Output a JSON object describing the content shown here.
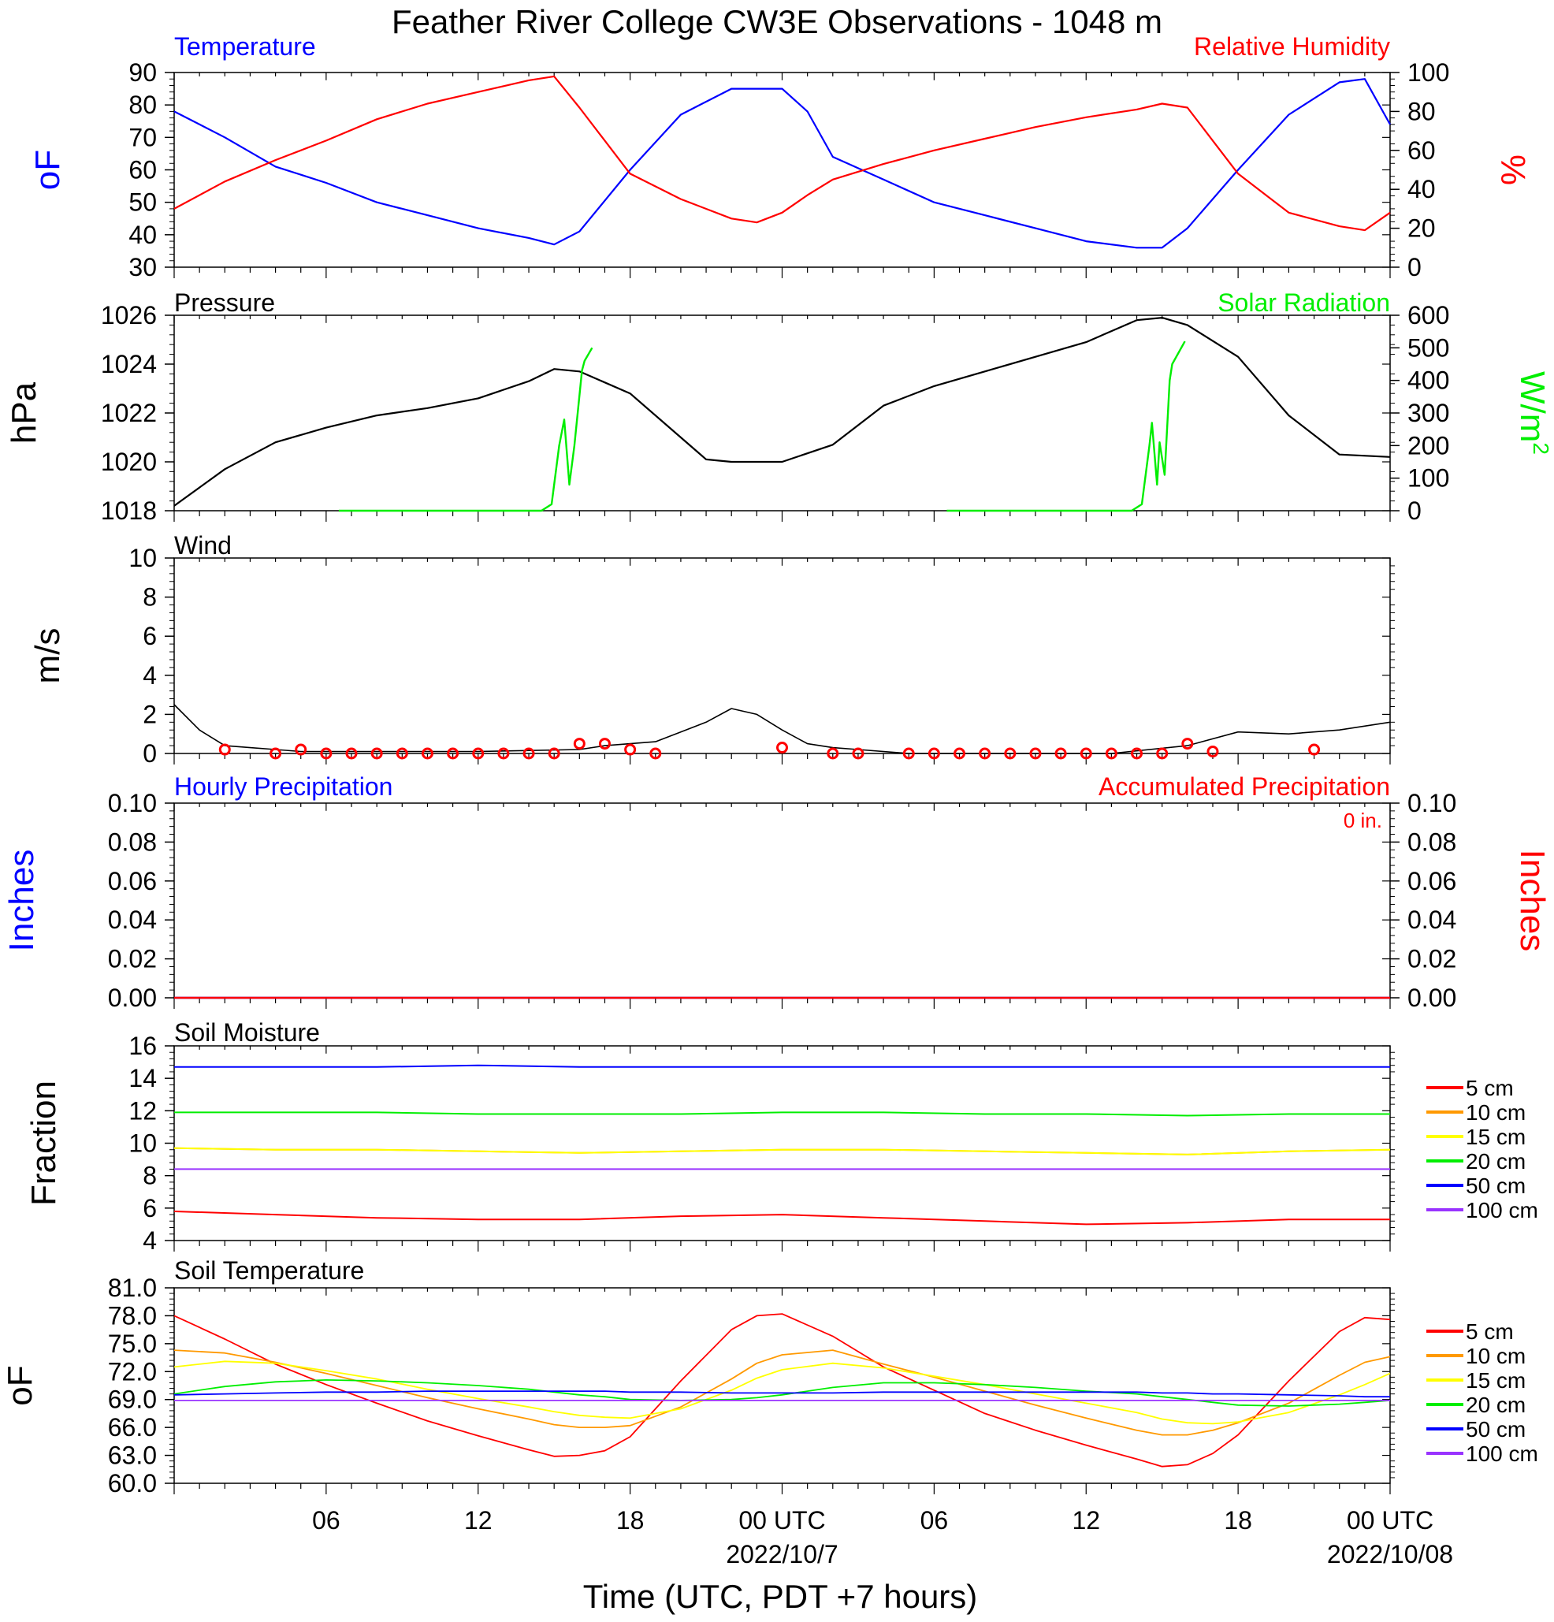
{
  "figure": {
    "title": "Feather River College CW3E Observations - 1048 m",
    "x_axis_label": "Time (UTC, PDT +7 hours)",
    "x_tick_labels": [
      "06",
      "12",
      "18",
      "00 UTC",
      "06",
      "12",
      "18",
      "00 UTC"
    ],
    "x_date_labels": [
      "2022/10/7",
      "2022/10/08"
    ],
    "colors": {
      "blue": "#0000ff",
      "red": "#ff0000",
      "green": "#00ee00",
      "black": "#000000",
      "orange": "#ff9900",
      "yellow": "#ffff00",
      "purple": "#9933ff"
    }
  },
  "chart_data": [
    {
      "type": "line",
      "panel": "temperature_humidity",
      "title_left": "Temperature",
      "title_right": "Relative Humidity",
      "ylabel_left": "oF",
      "ylabel_right": "%",
      "ylim_left": [
        30,
        90
      ],
      "ylim_right": [
        0,
        100
      ],
      "y_ticks_left": [
        "30",
        "40",
        "50",
        "60",
        "70",
        "80",
        "90"
      ],
      "y_ticks_right": [
        "0",
        "20",
        "40",
        "60",
        "80",
        "100"
      ],
      "x_hours": [
        0,
        2,
        4,
        6,
        8,
        10,
        12,
        14,
        15,
        16,
        18,
        20,
        22,
        23,
        24,
        25,
        26,
        28,
        30,
        32,
        34,
        36,
        38,
        39,
        40,
        42,
        44,
        46,
        47,
        48
      ],
      "series": [
        {
          "name": "Temperature",
          "axis": "left",
          "color": "#0000ff",
          "values": [
            78,
            70,
            61,
            56,
            50,
            46,
            42,
            39,
            37,
            41,
            60,
            77,
            85,
            85,
            85,
            78,
            64,
            57,
            50,
            46,
            42,
            38,
            36,
            36,
            42,
            60,
            77,
            87,
            88,
            74
          ]
        },
        {
          "name": "Relative Humidity",
          "axis": "right",
          "color": "#ff0000",
          "values": [
            30,
            44,
            55,
            65,
            76,
            84,
            90,
            96,
            98,
            82,
            48,
            35,
            25,
            23,
            28,
            37,
            45,
            53,
            60,
            66,
            72,
            77,
            81,
            84,
            82,
            48,
            28,
            21,
            19,
            28
          ]
        }
      ]
    },
    {
      "type": "line",
      "panel": "pressure_solar",
      "title_left": "Pressure",
      "title_right": "Solar Radiation",
      "ylabel_left": "hPa",
      "ylabel_right": "W/m",
      "ylabel_right_superscript": "2",
      "ylim_left": [
        1018,
        1026
      ],
      "ylim_right": [
        0,
        600
      ],
      "y_ticks_left": [
        "1018",
        "1020",
        "1022",
        "1024",
        "1026"
      ],
      "y_ticks_right": [
        "0",
        "100",
        "200",
        "300",
        "400",
        "500",
        "600"
      ],
      "series": [
        {
          "name": "Pressure",
          "axis": "left",
          "color": "#000000",
          "x_hours": [
            0,
            2,
            4,
            6,
            8,
            10,
            12,
            14,
            15,
            16,
            18,
            20,
            21,
            22,
            24,
            26,
            28,
            30,
            32,
            34,
            36,
            38,
            39,
            40,
            42,
            44,
            46,
            48
          ],
          "values": [
            1018.2,
            1019.7,
            1020.8,
            1021.4,
            1021.9,
            1022.2,
            1022.6,
            1023.3,
            1023.8,
            1023.7,
            1022.8,
            1021.0,
            1020.1,
            1020.0,
            1020.0,
            1020.7,
            1022.3,
            1023.1,
            1023.7,
            1024.3,
            1024.9,
            1025.8,
            1025.9,
            1025.6,
            1024.3,
            1021.9,
            1020.3,
            1020.2
          ]
        },
        {
          "name": "Solar Radiation",
          "axis": "right",
          "color": "#00ee00",
          "x_hours": [
            6.5,
            14,
            14.5,
            14.9,
            15.2,
            15.4,
            15.6,
            15.8,
            16.1,
            16.2,
            16.5,
            17.1,
            30.5,
            37.8,
            38.2,
            38.5,
            38.6,
            38.8,
            38.9,
            39.1,
            39.3,
            39.4,
            39.9,
            40.2
          ],
          "values": [
            0,
            0,
            0,
            20,
            200,
            280,
            80,
            200,
            430,
            460,
            500,
            0,
            0,
            0,
            20,
            200,
            270,
            80,
            210,
            110,
            400,
            450,
            520,
            0
          ],
          "gaps_after_index": [
            11
          ]
        }
      ]
    },
    {
      "type": "line",
      "panel": "wind",
      "title_left": "Wind",
      "ylabel_left": "m/s",
      "ylim_left": [
        0,
        10
      ],
      "y_ticks_left": [
        "0",
        "2",
        "4",
        "6",
        "8",
        "10"
      ],
      "series": [
        {
          "name": "Wind speed",
          "color": "#000000",
          "x_hours": [
            0,
            1,
            2,
            3,
            4,
            5,
            8,
            12,
            16,
            17,
            19,
            20,
            21,
            22,
            23,
            24,
            25,
            26,
            27,
            29,
            37,
            40,
            42,
            44,
            46,
            48
          ],
          "values": [
            2.5,
            1.2,
            0.4,
            0.3,
            0.2,
            0.1,
            0.1,
            0.1,
            0.2,
            0.4,
            0.6,
            1.1,
            1.6,
            2.3,
            2.0,
            1.2,
            0.5,
            0.3,
            0.2,
            0.0,
            0.0,
            0.4,
            1.1,
            1.0,
            1.2,
            1.6
          ]
        }
      ],
      "station_circles_x_hours": [
        2,
        4,
        5,
        6,
        7,
        8,
        9,
        10,
        11,
        12,
        13,
        14,
        15,
        16,
        17,
        18,
        19,
        24,
        26,
        27,
        29,
        30,
        31,
        32,
        33,
        34,
        35,
        36,
        37,
        38,
        39,
        40,
        41,
        45
      ],
      "station_circles_values": [
        0.2,
        0,
        0.2,
        0,
        0,
        0,
        0,
        0,
        0,
        0,
        0,
        0,
        0,
        0.5,
        0.5,
        0.2,
        0,
        0.3,
        0,
        0,
        0,
        0,
        0,
        0,
        0,
        0,
        0,
        0,
        0,
        0,
        0,
        0.5,
        0.1,
        0.2
      ]
    },
    {
      "type": "line",
      "panel": "precipitation",
      "title_left": "Hourly Precipitation",
      "title_right": "Accumulated Precipitation",
      "annotation": "0 in.",
      "ylabel_left": "Inches",
      "ylabel_right": "Inches",
      "ylim_left": [
        0,
        0.1
      ],
      "ylim_right": [
        0,
        0.1
      ],
      "y_ticks_left": [
        "0.00",
        "0.02",
        "0.04",
        "0.06",
        "0.08",
        "0.10"
      ],
      "y_ticks_right": [
        "0.00",
        "0.02",
        "0.04",
        "0.06",
        "0.08",
        "0.10"
      ],
      "series": [
        {
          "name": "Hourly Precipitation",
          "color": "#0000ff",
          "x_hours": [
            0,
            48
          ],
          "values": [
            0,
            0
          ]
        },
        {
          "name": "Accumulated Precipitation",
          "color": "#ff0000",
          "x_hours": [
            0,
            48
          ],
          "values": [
            0,
            0
          ]
        }
      ]
    },
    {
      "type": "line",
      "panel": "soil_moisture",
      "title_left": "Soil Moisture",
      "ylabel_left": "Fraction",
      "ylim_left": [
        4,
        16
      ],
      "y_ticks_left": [
        "4",
        "6",
        "8",
        "10",
        "12",
        "14",
        "16"
      ],
      "x_hours": [
        0,
        4,
        8,
        12,
        16,
        20,
        24,
        28,
        32,
        36,
        40,
        44,
        48
      ],
      "series": [
        {
          "name": "5 cm",
          "color": "#ff0000",
          "values": [
            5.8,
            5.6,
            5.4,
            5.3,
            5.3,
            5.5,
            5.6,
            5.4,
            5.2,
            5.0,
            5.1,
            5.3,
            5.3
          ]
        },
        {
          "name": "10 cm",
          "color": "#ff9900",
          "values": [
            9.7,
            9.6,
            9.6,
            9.5,
            9.4,
            9.5,
            9.6,
            9.6,
            9.5,
            9.4,
            9.3,
            9.5,
            9.6
          ]
        },
        {
          "name": "15 cm",
          "color": "#ffff00",
          "values": [
            9.7,
            9.6,
            9.6,
            9.5,
            9.4,
            9.5,
            9.6,
            9.6,
            9.5,
            9.4,
            9.3,
            9.5,
            9.6
          ]
        },
        {
          "name": "20 cm",
          "color": "#00ee00",
          "values": [
            11.9,
            11.9,
            11.9,
            11.8,
            11.8,
            11.8,
            11.9,
            11.9,
            11.8,
            11.8,
            11.7,
            11.8,
            11.8
          ]
        },
        {
          "name": "50 cm",
          "color": "#0000ff",
          "values": [
            14.7,
            14.7,
            14.7,
            14.8,
            14.7,
            14.7,
            14.7,
            14.7,
            14.7,
            14.7,
            14.7,
            14.7,
            14.7
          ]
        },
        {
          "name": "100 cm",
          "color": "#9933ff",
          "values": [
            8.4,
            8.4,
            8.4,
            8.4,
            8.4,
            8.4,
            8.4,
            8.4,
            8.4,
            8.4,
            8.4,
            8.4,
            8.4
          ]
        }
      ],
      "legend": [
        "5 cm",
        "10 cm",
        "15 cm",
        "20 cm",
        "50 cm",
        "100 cm"
      ]
    },
    {
      "type": "line",
      "panel": "soil_temperature",
      "title_left": "Soil Temperature",
      "ylabel_left": "oF",
      "ylim_left": [
        60,
        81
      ],
      "y_ticks_left": [
        "60.0",
        "63.0",
        "66.0",
        "69.0",
        "72.0",
        "75.0",
        "78.0",
        "81.0"
      ],
      "x_hours": [
        0,
        2,
        4,
        6,
        8,
        10,
        12,
        14,
        15,
        16,
        17,
        18,
        20,
        22,
        23,
        24,
        26,
        28,
        30,
        32,
        34,
        36,
        38,
        39,
        40,
        41,
        42,
        44,
        46,
        47,
        48
      ],
      "series": [
        {
          "name": "5 cm",
          "color": "#ff0000",
          "values": [
            78.0,
            75.5,
            72.8,
            70.6,
            68.6,
            66.7,
            65.1,
            63.6,
            62.9,
            63.0,
            63.5,
            65.0,
            71.0,
            76.5,
            78.0,
            78.2,
            75.8,
            72.5,
            70.0,
            67.5,
            65.7,
            64.1,
            62.6,
            61.8,
            62.0,
            63.2,
            65.2,
            71.0,
            76.3,
            77.8,
            77.6
          ]
        },
        {
          "name": "10 cm",
          "color": "#ff9900",
          "values": [
            74.3,
            74.0,
            73.0,
            71.8,
            70.5,
            69.2,
            68.0,
            66.9,
            66.3,
            66.0,
            66.0,
            66.2,
            68.2,
            71.2,
            72.9,
            73.8,
            74.3,
            72.8,
            71.4,
            69.9,
            68.4,
            67.0,
            65.7,
            65.2,
            65.2,
            65.7,
            66.5,
            68.6,
            71.6,
            73.0,
            73.6
          ]
        },
        {
          "name": "15 cm",
          "color": "#ffff00",
          "values": [
            72.5,
            73.1,
            72.9,
            72.1,
            71.2,
            70.1,
            69.1,
            68.2,
            67.7,
            67.3,
            67.1,
            67.0,
            68.0,
            70.0,
            71.3,
            72.2,
            72.9,
            72.4,
            71.5,
            70.6,
            69.6,
            68.6,
            67.6,
            66.9,
            66.5,
            66.4,
            66.6,
            67.6,
            69.5,
            70.6,
            71.8
          ]
        },
        {
          "name": "20 cm",
          "color": "#00ee00",
          "values": [
            69.6,
            70.4,
            70.9,
            71.1,
            71.0,
            70.8,
            70.5,
            70.1,
            69.8,
            69.5,
            69.3,
            69.0,
            68.9,
            69.0,
            69.2,
            69.5,
            70.3,
            70.8,
            70.8,
            70.6,
            70.3,
            69.9,
            69.6,
            69.3,
            69.0,
            68.7,
            68.4,
            68.3,
            68.5,
            68.7,
            68.9
          ]
        },
        {
          "name": "50 cm",
          "color": "#0000ff",
          "values": [
            69.5,
            69.6,
            69.7,
            69.8,
            69.8,
            69.9,
            69.9,
            69.9,
            69.9,
            69.9,
            69.9,
            69.8,
            69.8,
            69.7,
            69.7,
            69.7,
            69.7,
            69.8,
            69.8,
            69.8,
            69.8,
            69.8,
            69.8,
            69.7,
            69.7,
            69.6,
            69.6,
            69.5,
            69.4,
            69.3,
            69.3
          ]
        },
        {
          "name": "100 cm",
          "color": "#9933ff",
          "values": [
            68.9,
            68.9,
            68.9,
            68.9,
            68.9,
            68.9,
            68.9,
            68.9,
            68.9,
            68.9,
            68.9,
            68.9,
            68.9,
            68.9,
            68.9,
            68.9,
            68.9,
            68.9,
            68.9,
            68.9,
            68.9,
            68.9,
            68.9,
            68.9,
            68.9,
            68.9,
            68.9,
            68.9,
            68.9,
            68.9,
            68.9
          ]
        }
      ],
      "legend": [
        "5 cm",
        "10 cm",
        "15 cm",
        "20 cm",
        "50 cm",
        "100 cm"
      ]
    }
  ]
}
